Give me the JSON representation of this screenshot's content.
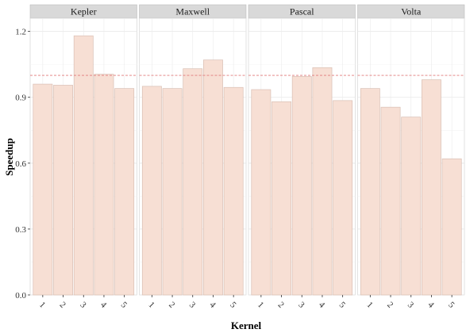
{
  "chart_data": {
    "type": "bar",
    "xlabel": "Kernel",
    "ylabel": "Speedup",
    "ylim": [
      0,
      1.26
    ],
    "yticks": [
      "0.0",
      "0.3",
      "0.6",
      "0.9",
      "1.2"
    ],
    "ytick_values": [
      0,
      0.3,
      0.6,
      0.9,
      1.2
    ],
    "categories": [
      "1",
      "2",
      "3",
      "4",
      "5"
    ],
    "reference_line": 1.0,
    "grid": true,
    "legend": "none",
    "bar_color": "#f7dfd4",
    "bar_stroke": "#d9bfb4",
    "reference_color": "#e07a7a",
    "strip_fill": "#d9d9d9",
    "panels": [
      {
        "name": "Kepler",
        "values": [
          0.96,
          0.955,
          1.18,
          1.005,
          0.94
        ]
      },
      {
        "name": "Maxwell",
        "values": [
          0.95,
          0.94,
          1.03,
          1.07,
          0.945
        ]
      },
      {
        "name": "Pascal",
        "values": [
          0.935,
          0.88,
          0.995,
          1.035,
          0.885
        ]
      },
      {
        "name": "Volta",
        "values": [
          0.94,
          0.855,
          0.81,
          0.98,
          0.62
        ]
      }
    ]
  }
}
